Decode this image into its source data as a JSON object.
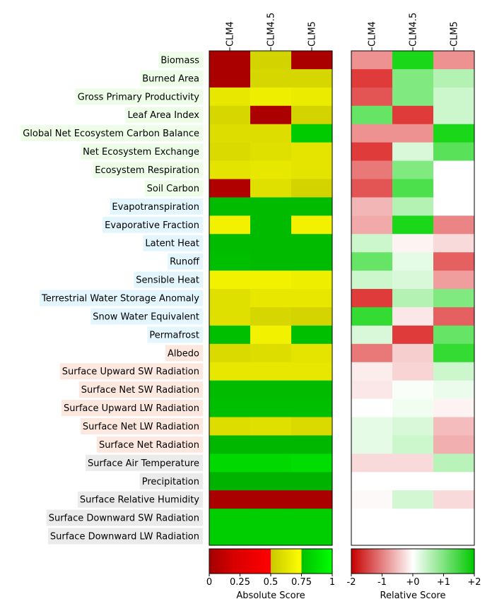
{
  "chart_data": [
    {
      "type": "heatmap",
      "panel": "absolute",
      "columns": [
        "CLM4",
        "CLM4.5",
        "CLM5"
      ],
      "rows": [
        {
          "name": "Biomass",
          "group": "ecosystem",
          "values": [
            0.02,
            0.62,
            0.02
          ]
        },
        {
          "name": "Burned Area",
          "group": "ecosystem",
          "values": [
            0.02,
            0.63,
            0.63
          ]
        },
        {
          "name": "Gross Primary Productivity",
          "group": "ecosystem",
          "values": [
            0.68,
            0.7,
            0.69
          ]
        },
        {
          "name": "Leaf Area Index",
          "group": "ecosystem",
          "values": [
            0.63,
            0.02,
            0.62
          ]
        },
        {
          "name": "Global Net Ecosystem Carbon Balance",
          "group": "ecosystem",
          "values": [
            0.65,
            0.65,
            0.86
          ]
        },
        {
          "name": "Net Ecosystem Exchange",
          "group": "ecosystem",
          "values": [
            0.64,
            0.66,
            0.67
          ]
        },
        {
          "name": "Ecosystem Respiration",
          "group": "ecosystem",
          "values": [
            0.67,
            0.68,
            0.67
          ]
        },
        {
          "name": "Soil Carbon",
          "group": "ecosystem",
          "values": [
            0.05,
            0.66,
            0.62
          ]
        },
        {
          "name": "Evapotranspiration",
          "group": "hydrology",
          "values": [
            0.82,
            0.82,
            0.82
          ]
        },
        {
          "name": "Evaporative Fraction",
          "group": "hydrology",
          "values": [
            0.71,
            0.82,
            0.71
          ]
        },
        {
          "name": "Latent Heat",
          "group": "hydrology",
          "values": [
            0.82,
            0.82,
            0.82
          ]
        },
        {
          "name": "Runoff",
          "group": "hydrology",
          "values": [
            0.83,
            0.82,
            0.82
          ]
        },
        {
          "name": "Sensible Heat",
          "group": "hydrology",
          "values": [
            0.71,
            0.71,
            0.7
          ]
        },
        {
          "name": "Terrestrial Water Storage Anomaly",
          "group": "hydrology",
          "values": [
            0.66,
            0.68,
            0.68
          ]
        },
        {
          "name": "Snow Water Equivalent",
          "group": "hydrology",
          "values": [
            0.66,
            0.63,
            0.62
          ]
        },
        {
          "name": "Permafrost",
          "group": "hydrology",
          "values": [
            0.83,
            0.71,
            0.83
          ]
        },
        {
          "name": "Albedo",
          "group": "radiation",
          "values": [
            0.64,
            0.65,
            0.67
          ]
        },
        {
          "name": "Surface Upward SW Radiation",
          "group": "radiation",
          "values": [
            0.68,
            0.68,
            0.68
          ]
        },
        {
          "name": "Surface Net SW Radiation",
          "group": "radiation",
          "values": [
            0.82,
            0.82,
            0.82
          ]
        },
        {
          "name": "Surface Upward LW Radiation",
          "group": "radiation",
          "values": [
            0.83,
            0.83,
            0.83
          ]
        },
        {
          "name": "Surface Net LW Radiation",
          "group": "radiation",
          "values": [
            0.65,
            0.66,
            0.64
          ]
        },
        {
          "name": "Surface Net Radiation",
          "group": "radiation",
          "values": [
            0.81,
            0.81,
            0.81
          ]
        },
        {
          "name": "Surface Air Temperature",
          "group": "forcing",
          "values": [
            0.9,
            0.9,
            0.91
          ]
        },
        {
          "name": "Precipitation",
          "group": "forcing",
          "values": [
            0.8,
            0.8,
            0.8
          ]
        },
        {
          "name": "Surface Relative Humidity",
          "group": "forcing",
          "values": [
            0.02,
            0.02,
            0.02
          ]
        },
        {
          "name": "Surface Downward SW Radiation",
          "group": "forcing",
          "values": [
            0.87,
            0.87,
            0.87
          ]
        },
        {
          "name": "Surface Downward LW Radiation",
          "group": "forcing",
          "values": [
            0.87,
            0.87,
            0.87
          ]
        }
      ],
      "colorbar": {
        "label": "Absolute Score",
        "ticks": [
          "0",
          "0.25",
          "0.5",
          "0.75",
          "1"
        ],
        "range": [
          0,
          1
        ]
      }
    },
    {
      "type": "heatmap",
      "panel": "relative",
      "columns": [
        "CLM4",
        "CLM4.5",
        "CLM5"
      ],
      "rows": [
        {
          "name": "Biomass",
          "values": [
            -0.9,
            1.8,
            -0.9
          ]
        },
        {
          "name": "Burned Area",
          "values": [
            -1.6,
            1.0,
            0.6
          ]
        },
        {
          "name": "Gross Primary Productivity",
          "values": [
            -1.4,
            1.0,
            0.4
          ]
        },
        {
          "name": "Leaf Area Index",
          "values": [
            1.2,
            -1.6,
            0.4
          ]
        },
        {
          "name": "Global Net Ecosystem Carbon Balance",
          "values": [
            -0.9,
            -0.9,
            1.8
          ]
        },
        {
          "name": "Net Ecosystem Exchange",
          "values": [
            -1.6,
            0.3,
            1.3
          ]
        },
        {
          "name": "Ecosystem Respiration",
          "values": [
            -1.1,
            1.0,
            0.0
          ]
        },
        {
          "name": "Soil Carbon",
          "values": [
            -1.4,
            1.4,
            0.0
          ]
        },
        {
          "name": "Evapotranspiration",
          "values": [
            -0.6,
            0.6,
            0.0
          ]
        },
        {
          "name": "Evaporative Fraction",
          "values": [
            -0.7,
            1.8,
            -1.0
          ]
        },
        {
          "name": "Latent Heat",
          "values": [
            0.4,
            -0.1,
            -0.3
          ]
        },
        {
          "name": "Runoff",
          "values": [
            1.2,
            0.2,
            -1.3
          ]
        },
        {
          "name": "Sensible Heat",
          "values": [
            0.4,
            0.3,
            -0.8
          ]
        },
        {
          "name": "Terrestrial Water Storage Anomaly",
          "values": [
            -1.6,
            0.6,
            1.0
          ]
        },
        {
          "name": "Snow Water Equivalent",
          "values": [
            1.6,
            -0.2,
            -1.3
          ]
        },
        {
          "name": "Permafrost",
          "values": [
            0.3,
            -1.6,
            1.2
          ]
        },
        {
          "name": "Albedo",
          "values": [
            -1.1,
            -0.4,
            1.6
          ]
        },
        {
          "name": "Surface Upward SW Radiation",
          "values": [
            -0.15,
            -0.35,
            0.4
          ]
        },
        {
          "name": "Surface Net SW Radiation",
          "values": [
            -0.2,
            0.05,
            0.15
          ]
        },
        {
          "name": "Surface Upward LW Radiation",
          "values": [
            0.0,
            0.1,
            -0.1
          ]
        },
        {
          "name": "Surface Net LW Radiation",
          "values": [
            0.2,
            0.3,
            -0.55
          ]
        },
        {
          "name": "Surface Net Radiation",
          "values": [
            0.2,
            0.4,
            -0.65
          ]
        },
        {
          "name": "Surface Air Temperature",
          "values": [
            -0.3,
            -0.3,
            0.55
          ]
        },
        {
          "name": "Precipitation",
          "values": [
            0.0,
            0.0,
            0.0
          ]
        },
        {
          "name": "Surface Relative Humidity",
          "values": [
            -0.05,
            0.35,
            -0.3
          ]
        },
        {
          "name": "Surface Downward SW Radiation",
          "values": [
            0.0,
            0.0,
            0.0
          ]
        },
        {
          "name": "Surface Downward LW Radiation",
          "values": [
            0.0,
            0.0,
            0.0
          ]
        }
      ],
      "colorbar": {
        "label": "Relative Score",
        "ticks": [
          "-2",
          "-1",
          "+0",
          "+1",
          "+2"
        ],
        "range": [
          -2,
          2
        ]
      }
    }
  ],
  "colors": {
    "group_ecosystem": "#edfde8",
    "group_hydrology": "#e3f6fd",
    "group_radiation": "#fde8e0",
    "group_forcing": "#ebebeb"
  }
}
